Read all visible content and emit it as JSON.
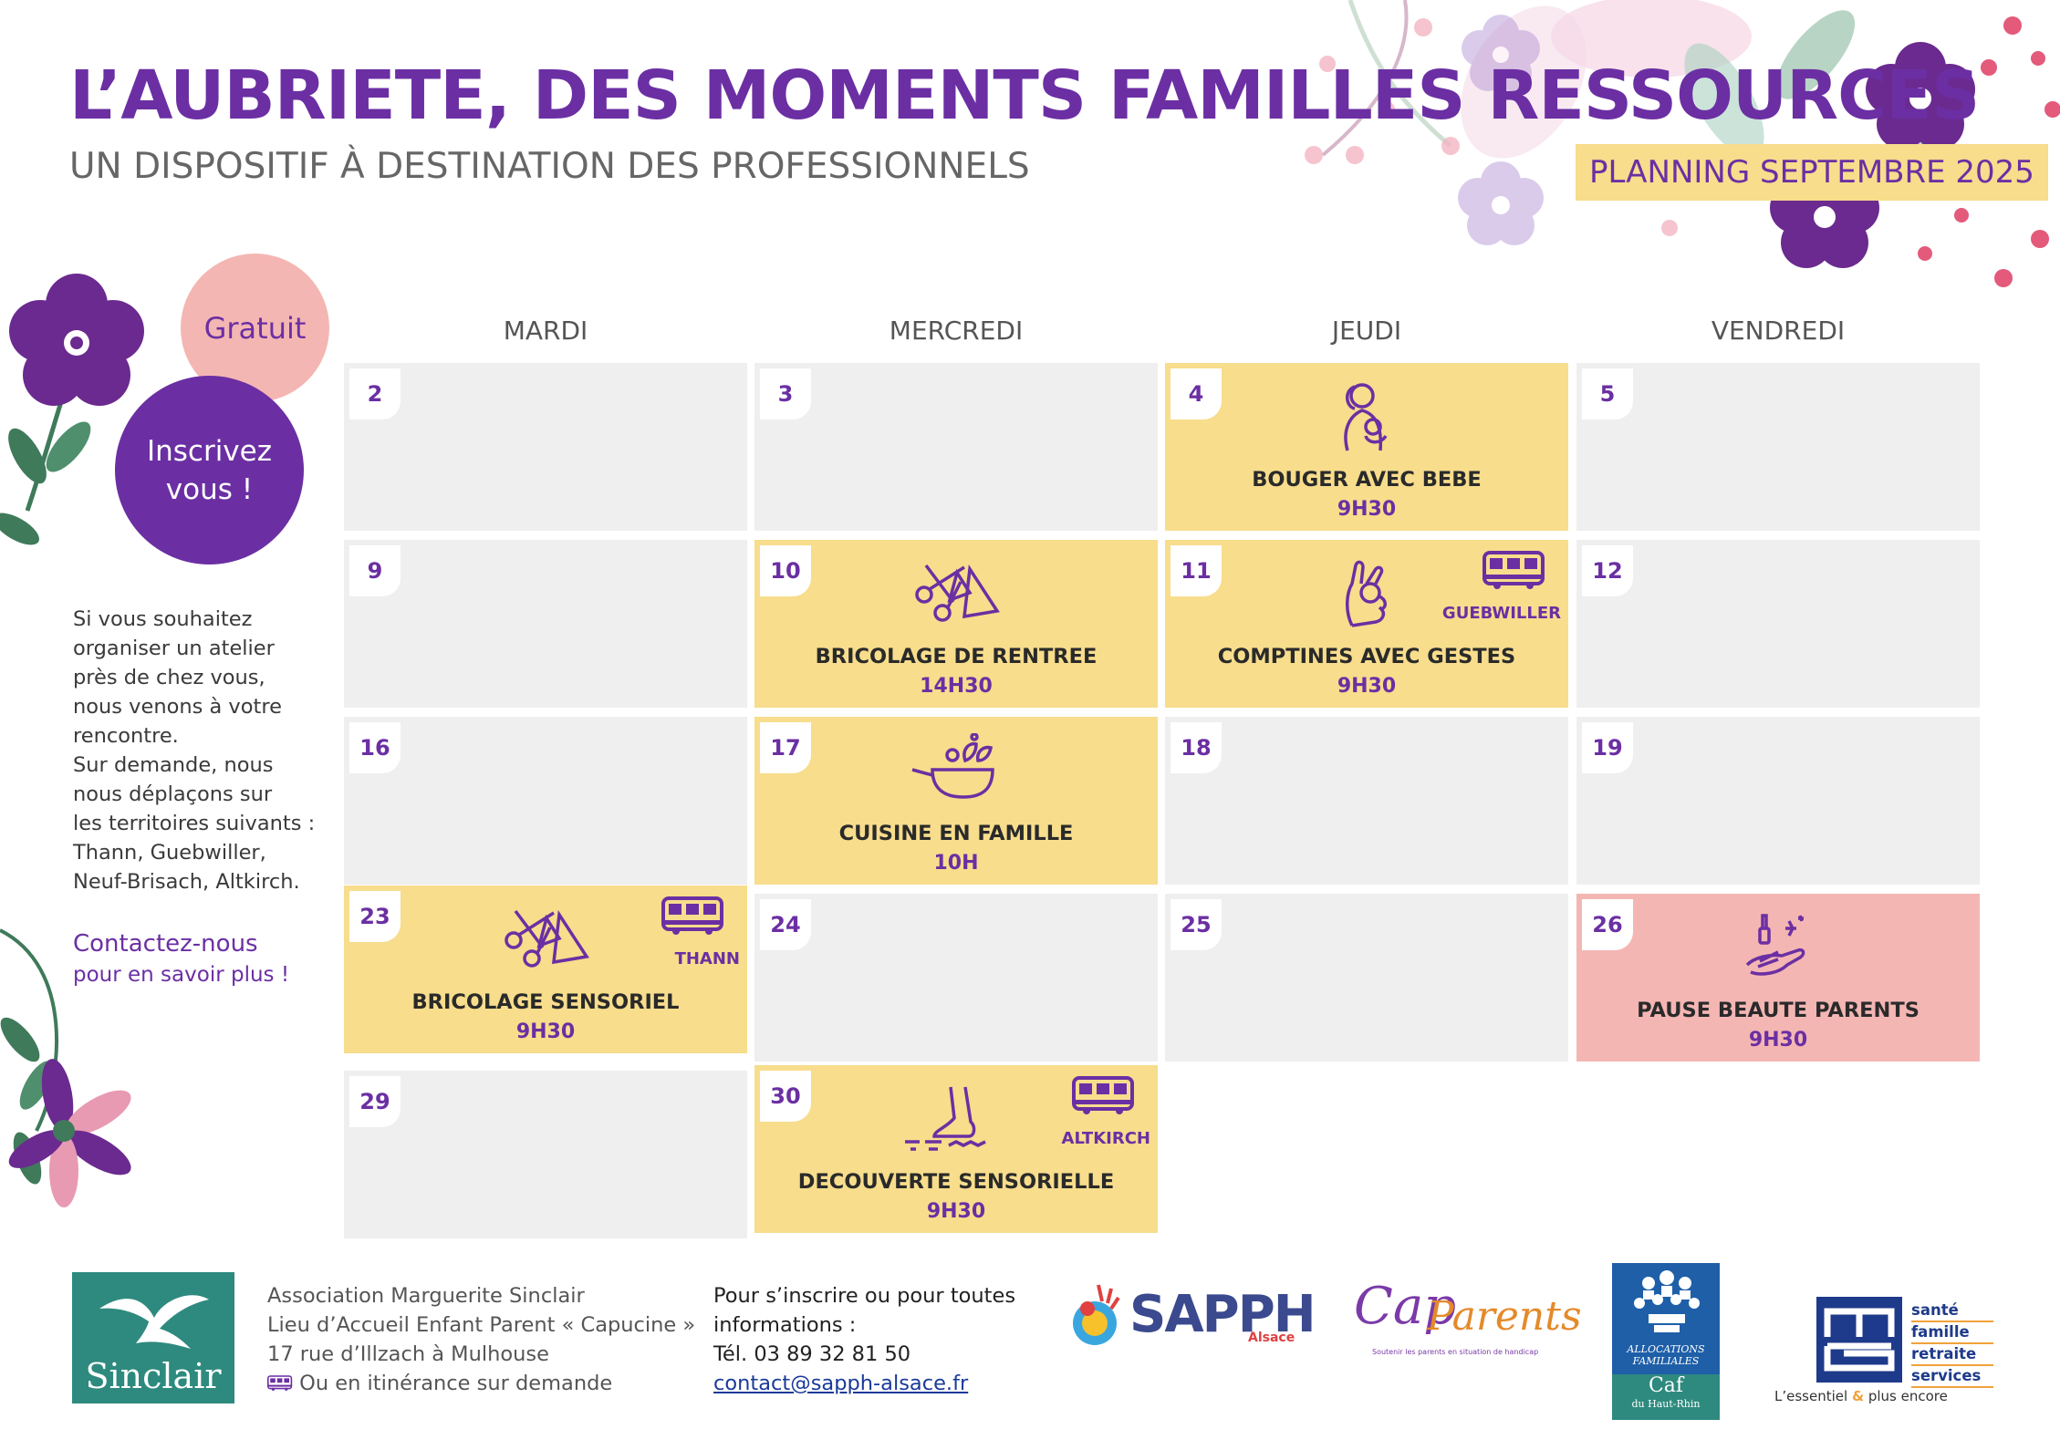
{
  "header": {
    "title": "L’AUBRIETE, DES MOMENTS FAMILLES RESSOURCES",
    "subtitle": "UN DISPOSITIF À DESTINATION DES PROFESSIONNELS",
    "planning": "PLANNING SEPTEMBRE 2025"
  },
  "left_panel": {
    "gratuit": "Gratuit",
    "inscrivez_line1": "Inscrivez",
    "inscrivez_line2": "vous !",
    "info_lines": [
      "Si vous souhaitez",
      "organiser un atelier",
      "près de chez vous,",
      "nous venons à votre",
      "rencontre.",
      "Sur demande, nous",
      "nous déplaçons sur",
      "les territoires suivants :",
      "Thann, Guebwiller,",
      "Neuf-Brisach, Altkirch."
    ],
    "contact_title": "Contactez-nous",
    "contact_sub": "pour en savoir plus !"
  },
  "calendar": {
    "days": [
      "MARDI",
      "MERCREDI",
      "JEUDI",
      "VENDREDI"
    ],
    "cells": [
      {
        "day": "2"
      },
      {
        "day": "3"
      },
      {
        "day": "4",
        "title": "BOUGER AVEC BEBE",
        "time": "9H30",
        "icon": "mother-baby-icon"
      },
      {
        "day": "5"
      },
      {
        "day": "9"
      },
      {
        "day": "10",
        "title": "BRICOLAGE DE RENTREE",
        "time": "14H30",
        "icon": "craft-tools-icon"
      },
      {
        "day": "11",
        "title": "COMPTINES AVEC GESTES",
        "time": "9H30",
        "icon": "hand-gesture-icon",
        "location": "GUEBWILLER"
      },
      {
        "day": "12"
      },
      {
        "day": "16"
      },
      {
        "day": "17",
        "title": "CUISINE EN FAMILLE",
        "time": "10H",
        "icon": "cooking-pan-icon"
      },
      {
        "day": "18"
      },
      {
        "day": "19"
      },
      {
        "day": "23",
        "title": "BRICOLAGE SENSORIEL",
        "time": "9H30",
        "icon": "craft-tools-icon",
        "location": "THANN"
      },
      {
        "day": "24"
      },
      {
        "day": "25"
      },
      {
        "day": "26",
        "title": "PAUSE BEAUTE PARENTS",
        "time": "9H30",
        "icon": "nail-polish-hand-icon"
      },
      {
        "day": "29"
      },
      {
        "day": "30",
        "title": "DECOUVERTE SENSORIELLE",
        "time": "9H30",
        "icon": "foot-sensory-icon",
        "location": "ALTKIRCH"
      }
    ]
  },
  "footer": {
    "sinclair_logo": "Sinclair",
    "address_lines": [
      "Association Marguerite Sinclair",
      "Lieu d’Accueil Enfant Parent « Capucine »",
      "17 rue d’Illzach à Mulhouse"
    ],
    "itinerance": "Ou en itinérance sur demande",
    "contact_lines": [
      "Pour s’inscrire ou pour toutes",
      "informations :",
      "Tél. 03 89 32 81 50"
    ],
    "email": "contact@sapph-alsace.fr",
    "sapph": "SAPPH",
    "sapph_sub": "Alsace",
    "cap": "Cap",
    "parents": "Parents",
    "cap_tagline": "Soutenir les parents en situation de handicap",
    "caf_allocations": "ALLOCATIONS FAMILIALES",
    "caf": "Caf",
    "caf_region": "du Haut-Rhin",
    "msa_words": [
      "santé",
      "famille",
      "retraite",
      "services"
    ],
    "msa_tag_1": "L’essentiel",
    "msa_tag_amp": "&",
    "msa_tag_2": "plus encore"
  },
  "colors": {
    "purple": "#6b2fa3",
    "yellow": "#f7dd8c",
    "pink": "#f4b6b3",
    "grey_cell": "#efefef"
  }
}
